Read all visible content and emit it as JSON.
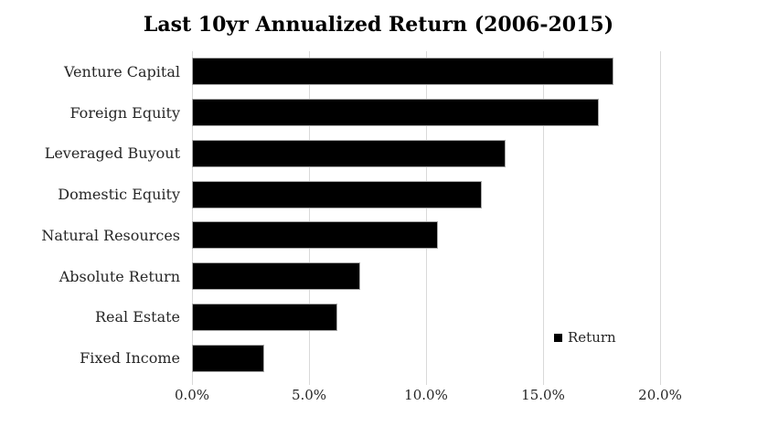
{
  "chart_data": {
    "type": "bar",
    "orientation": "horizontal",
    "title": "Last 10yr Annualized Return (2006-2015)",
    "categories": [
      "Venture Capital",
      "Foreign Equity",
      "Leveraged Buyout",
      "Domestic Equity",
      "Natural Resources",
      "Absolute Return",
      "Real Estate",
      "Fixed Income"
    ],
    "series": [
      {
        "name": "Return",
        "values": [
          18.0,
          17.4,
          13.4,
          12.4,
          10.5,
          7.2,
          6.2,
          3.1
        ]
      }
    ],
    "value_unit": "%",
    "xlim": [
      0,
      20
    ],
    "x_tick_values": [
      0,
      5,
      10,
      15,
      20
    ],
    "x_tick_labels": [
      "0.0%",
      "5.0%",
      "10.0%",
      "15.0%",
      "20.0%"
    ],
    "grid": "vertical-major",
    "legend": {
      "label": "Return",
      "position": "inside-lower-right"
    },
    "colors": {
      "bar": "#000000",
      "gridline": "#d9d9d9",
      "title_text": "#000000",
      "label_text": "#262626",
      "background": "#ffffff"
    }
  }
}
